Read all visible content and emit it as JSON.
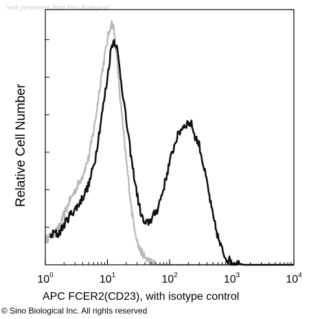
{
  "watermark": "with permission from Sino Biological",
  "footer": {
    "copyright": "© Sino Biological Inc. All rights reserved"
  },
  "colors": {
    "sample": "#111111",
    "isotope": "#b9b9b9",
    "axis": "#000000"
  },
  "chart_data": {
    "type": "line",
    "title": "",
    "xlabel": "APC FCER2(CD23), with isotype control",
    "ylabel": "Relative Cell Number",
    "xscale": "log",
    "xlim": [
      1,
      10000
    ],
    "ylim": [
      0,
      1
    ],
    "x_ticks": [
      {
        "value": 1,
        "base": "10",
        "exp": "0"
      },
      {
        "value": 10,
        "base": "10",
        "exp": "1"
      },
      {
        "value": 100,
        "base": "10",
        "exp": "2"
      },
      {
        "value": 1000,
        "base": "10",
        "exp": "3"
      },
      {
        "value": 10000,
        "base": "10",
        "exp": "4"
      }
    ],
    "grid": false,
    "legend": "none",
    "series": [
      {
        "style": "dark",
        "x": [
          1.2,
          1.4,
          1.6,
          2.0,
          2.5,
          3.2,
          4.0,
          5.0,
          6.3,
          7.9,
          10,
          11.5,
          12.6,
          14,
          15.8,
          20,
          25,
          31.6,
          35,
          40,
          45,
          50,
          63,
          79,
          100,
          126,
          158,
          200,
          230,
          251,
          300,
          398,
          501,
          631,
          700,
          794,
          1000,
          1585,
          3162,
          10000
        ],
        "y": [
          0.11,
          0.13,
          0.12,
          0.16,
          0.2,
          0.23,
          0.27,
          0.32,
          0.42,
          0.58,
          0.75,
          0.87,
          0.9,
          0.88,
          0.78,
          0.58,
          0.4,
          0.25,
          0.2,
          0.16,
          0.17,
          0.18,
          0.22,
          0.3,
          0.41,
          0.5,
          0.55,
          0.57,
          0.56,
          0.52,
          0.48,
          0.33,
          0.19,
          0.09,
          0.06,
          0.03,
          0.01,
          0.0,
          0.0,
          0.0
        ]
      },
      {
        "style": "light",
        "x": [
          1.0,
          1.3,
          1.6,
          2.0,
          2.5,
          3.2,
          4.0,
          5.0,
          6.3,
          7.9,
          10,
          11.5,
          12.6,
          14,
          15.8,
          20,
          25,
          31.6,
          40,
          50,
          63,
          79,
          100,
          158,
          316,
          1000
        ],
        "y": [
          0.1,
          0.12,
          0.14,
          0.2,
          0.26,
          0.31,
          0.36,
          0.43,
          0.57,
          0.75,
          0.9,
          0.97,
          0.95,
          0.85,
          0.68,
          0.42,
          0.2,
          0.07,
          0.03,
          0.01,
          0.0,
          0.0,
          0.0,
          0.0,
          0.0,
          0.0
        ]
      }
    ]
  }
}
